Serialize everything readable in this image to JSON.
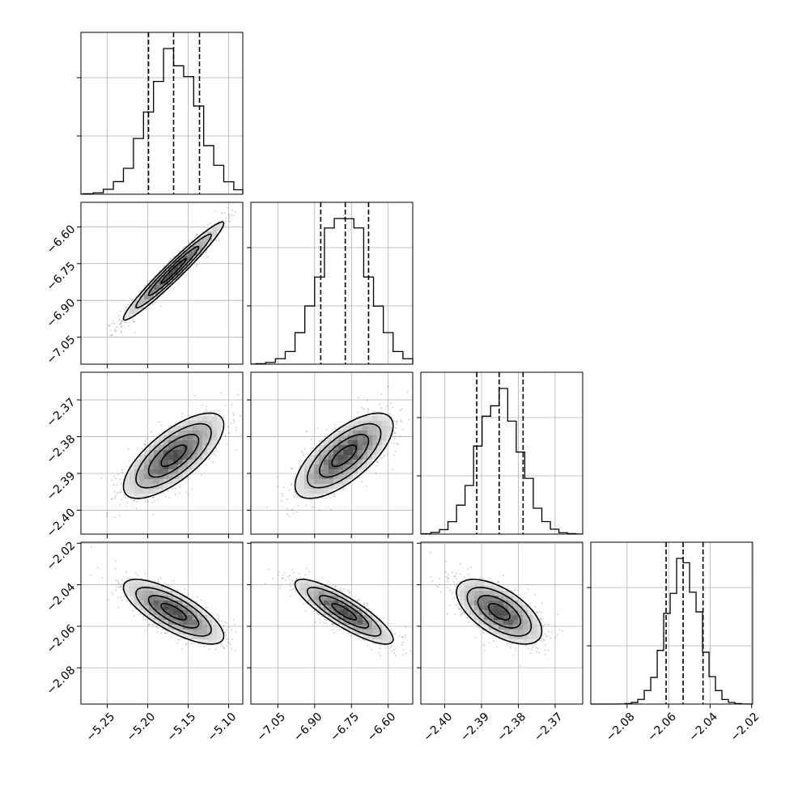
{
  "chart_data": {
    "type": "corner",
    "dimensions": 4,
    "parameters": [
      {
        "range": [
          -5.2825,
          -5.0825
        ],
        "ticks": [
          -5.25,
          -5.2,
          -5.15,
          -5.1
        ],
        "tick_labels": [
          "−5.25",
          "−5.20",
          "−5.15",
          "−5.10"
        ],
        "mean": -5.168,
        "sd": 0.031,
        "quantiles": [
          -5.199,
          -5.168,
          -5.136
        ]
      },
      {
        "range": [
          -7.16,
          -6.5
        ],
        "ticks": [
          -7.05,
          -6.9,
          -6.75,
          -6.6
        ],
        "tick_labels": [
          "−7.05",
          "−6.90",
          "−6.75",
          "−6.60"
        ],
        "mean": -6.78,
        "sd": 0.1,
        "quantiles": [
          -6.875,
          -6.775,
          -6.68
        ]
      },
      {
        "range": [
          -2.4065,
          -2.3625
        ],
        "ticks": [
          -2.4,
          -2.39,
          -2.38,
          -2.37
        ],
        "tick_labels": [
          "−2.40",
          "−2.39",
          "−2.38",
          "−2.37"
        ],
        "mean": -2.3852,
        "sd": 0.0058,
        "quantiles": [
          -2.3913,
          -2.3852,
          -2.3787
        ]
      },
      {
        "range": [
          -2.0975,
          -2.0195
        ],
        "ticks": [
          -2.08,
          -2.06,
          -2.04,
          -2.02
        ],
        "tick_labels": [
          "−2.08",
          "−2.06",
          "−2.04",
          "−2.02"
        ],
        "mean": -2.053,
        "sd": 0.0078,
        "quantiles": [
          -2.0612,
          -2.053,
          -2.0434
        ]
      }
    ],
    "correlations": [
      [
        1.0,
        0.97,
        0.72,
        -0.75
      ],
      [
        0.97,
        1.0,
        0.7,
        -0.85
      ],
      [
        0.72,
        0.7,
        1.0,
        -0.6
      ],
      [
        -0.75,
        -0.85,
        -0.6,
        1.0
      ]
    ],
    "quantile_levels": [
      0.16,
      0.5,
      0.84
    ],
    "histogram_bins": 20,
    "contour_levels_sigma": [
      0.5,
      1.0,
      1.5,
      2.0
    ],
    "grid": true
  }
}
